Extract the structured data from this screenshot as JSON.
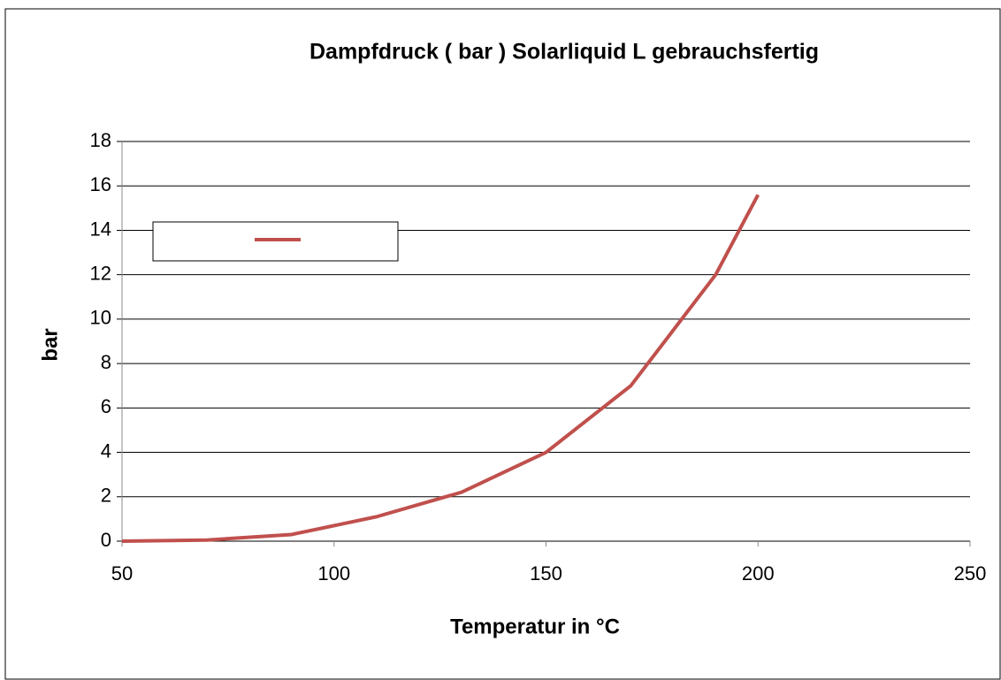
{
  "chart_data": {
    "type": "line",
    "title": "Dampfdruck ( bar ) Solarliquid  L gebrauchsfertig",
    "xlabel": "Temperatur in °C",
    "ylabel": "bar",
    "x": [
      50,
      70,
      90,
      110,
      130,
      150,
      170,
      190,
      200
    ],
    "series": [
      {
        "color": "#c0504d",
        "values": [
          0,
          0.05,
          0.3,
          1.1,
          2.2,
          4.0,
          7.0,
          12.0,
          15.6
        ]
      }
    ],
    "xlim": [
      50,
      250
    ],
    "xticks": [
      50,
      100,
      150,
      200,
      250
    ],
    "ylim": [
      0,
      18
    ],
    "yticks": [
      0,
      2,
      4,
      6,
      8,
      10,
      12,
      14,
      16,
      18
    ],
    "grid": true,
    "legend": "upper left"
  }
}
